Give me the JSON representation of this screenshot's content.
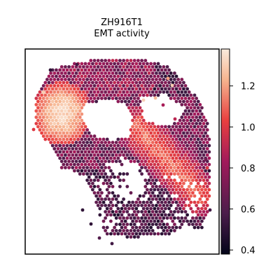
{
  "chart_data": {
    "type": "heatmap",
    "plot_kind": "spatial hex-spot map",
    "title": "ZH916T1",
    "subtitle": "EMT activity",
    "xlabel": "",
    "ylabel": "",
    "grid": false,
    "legend": "colorbar, right",
    "colormap": "rocket",
    "color_range": [
      0.38,
      1.38
    ],
    "colorbar_ticks": [
      0.4,
      0.6,
      0.8,
      1.0,
      1.2
    ],
    "colorbar_tick_labels": [
      "0.4",
      "0.6",
      "0.8",
      "1.0",
      "1.2"
    ],
    "colors": {
      "low": "#03051a",
      "mid_low": "#4c1d4b",
      "mid": "#a11a5b",
      "mid_high": "#e83f3f",
      "high": "#f6b48f",
      "max": "#faebdd"
    },
    "regions_approx": [
      {
        "label": "upper-left lobe",
        "value_range": [
          1.1,
          1.35
        ]
      },
      {
        "label": "upper arc",
        "value_range": [
          0.6,
          0.95
        ]
      },
      {
        "label": "right diagonal band",
        "value_range": [
          0.85,
          1.15
        ]
      },
      {
        "label": "lower region",
        "value_range": [
          0.45,
          0.75
        ]
      }
    ]
  }
}
